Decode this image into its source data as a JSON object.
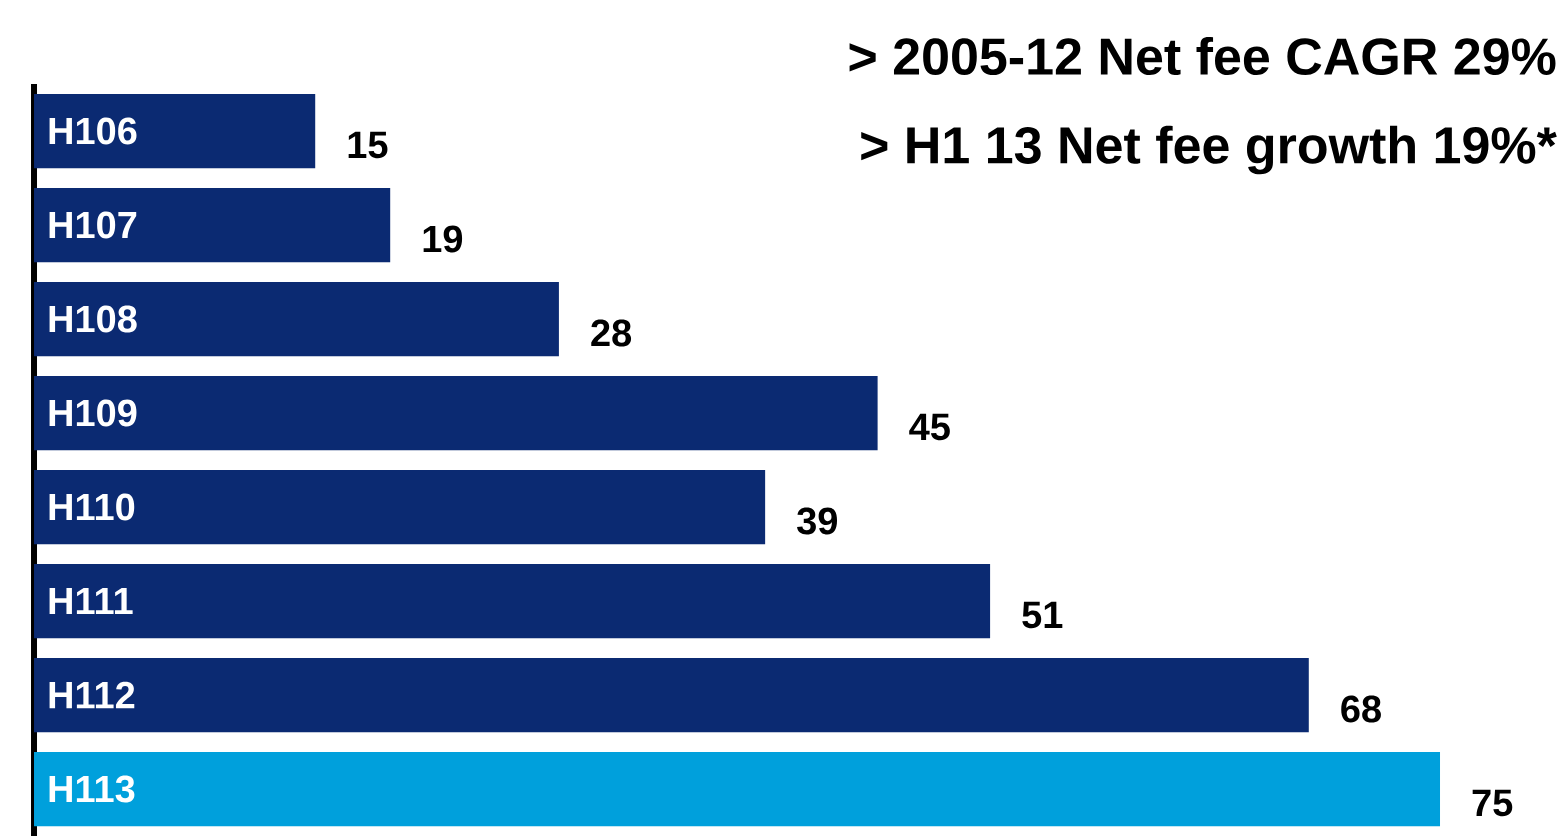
{
  "chart_data": {
    "type": "bar",
    "orientation": "horizontal",
    "categories": [
      "H106",
      "H107",
      "H108",
      "H109",
      "H110",
      "H111",
      "H112",
      "H113"
    ],
    "values": [
      15,
      19,
      28,
      45,
      39,
      51,
      68,
      75
    ],
    "colors": [
      "#0b2a72",
      "#0b2a72",
      "#0b2a72",
      "#0b2a72",
      "#0b2a72",
      "#0b2a72",
      "#0b2a72",
      "#00a0dc"
    ],
    "data_labels": true,
    "annotations": [
      "> 2005-12 Net fee CAGR 29%",
      "> H1 13 Net fee growth 19%*"
    ]
  }
}
